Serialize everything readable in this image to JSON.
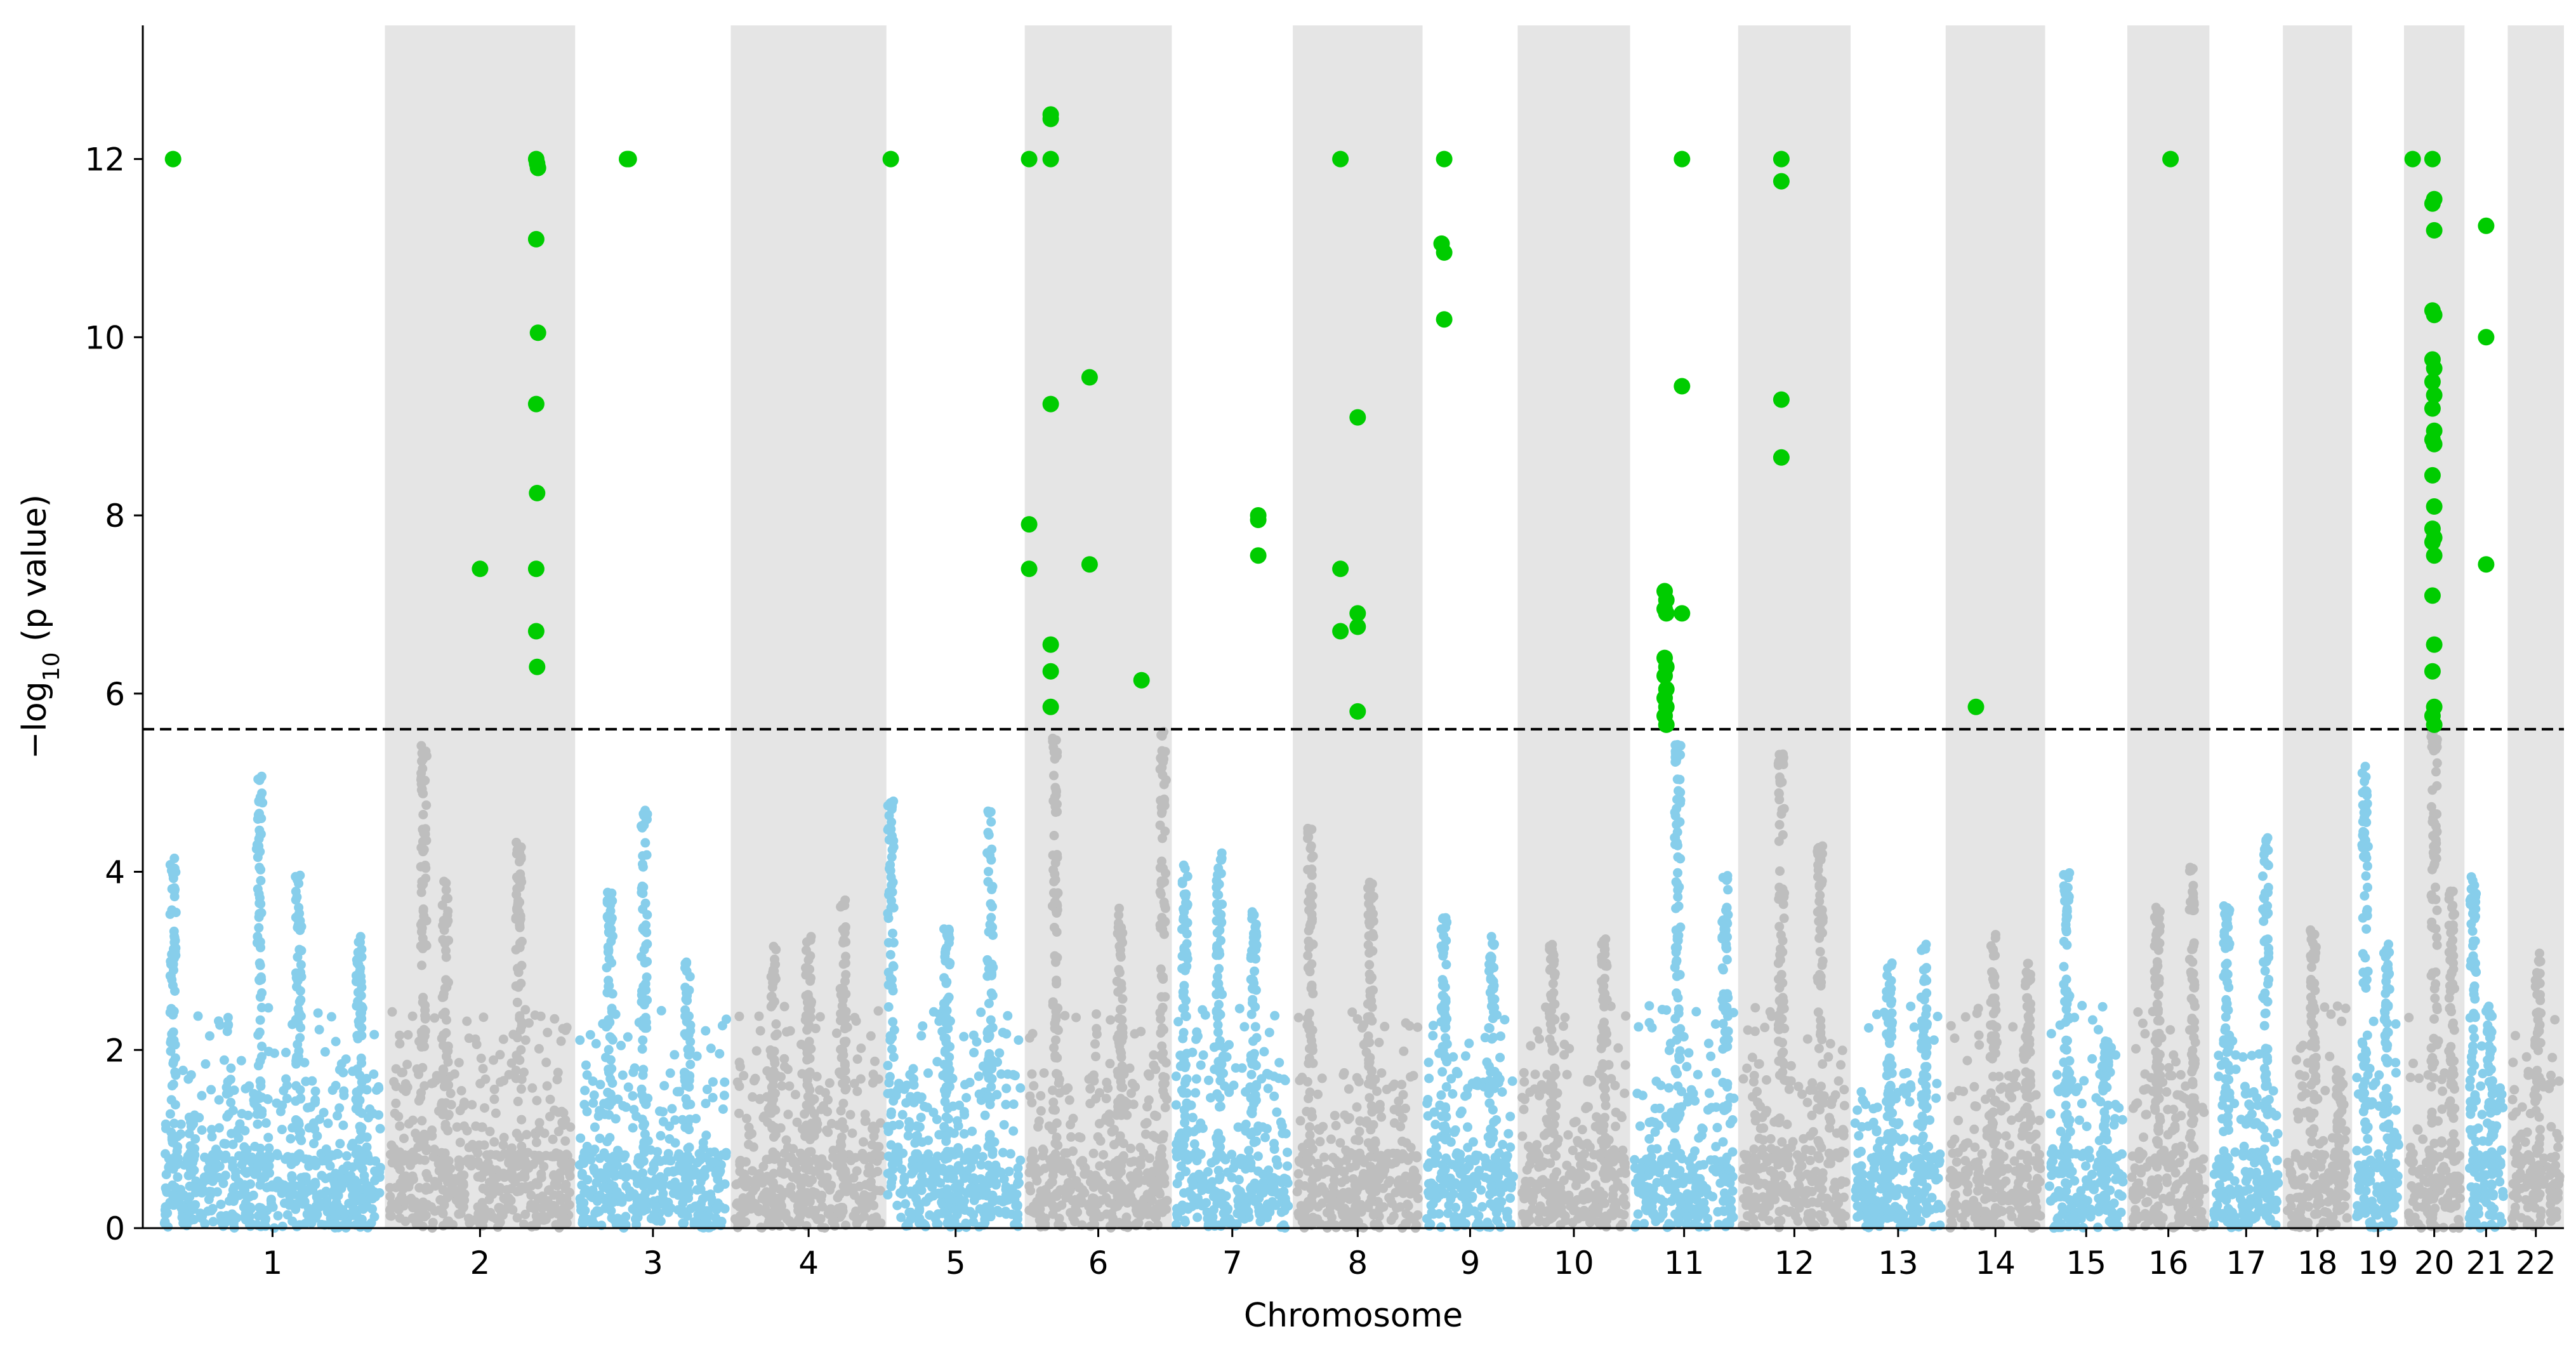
{
  "chart_data": {
    "type": "scatter",
    "title": "",
    "xlabel": "Chromosome",
    "ylabel_main": "−log",
    "ylabel_sub": "10",
    "ylabel_rest": " (p value)",
    "ylim": [
      0,
      13.5
    ],
    "yticks": [
      0,
      2,
      4,
      6,
      8,
      10,
      12
    ],
    "threshold": 5.6,
    "colors": {
      "odd": "#87ceeb",
      "even": "#bebebe",
      "significant": "#00cc00",
      "shade": "#e5e5e5",
      "threshold_line": "#000000"
    },
    "chromosomes": [
      {
        "label": "1",
        "start": 0.2,
        "end": 2.8,
        "shaded": false,
        "peaks": [
          [
            0.35,
            4.2
          ],
          [
            1.35,
            5.1
          ],
          [
            1.8,
            4.0
          ],
          [
            2.5,
            3.3
          ]
        ]
      },
      {
        "label": "2",
        "start": 2.8,
        "end": 5.0,
        "shaded": true,
        "peaks": [
          [
            3.25,
            5.5
          ],
          [
            3.5,
            3.9
          ],
          [
            4.35,
            4.4
          ]
        ]
      },
      {
        "label": "3",
        "start": 5.0,
        "end": 6.8,
        "shaded": false,
        "peaks": [
          [
            5.4,
            3.8
          ],
          [
            5.8,
            4.7
          ],
          [
            6.3,
            3.0
          ]
        ]
      },
      {
        "label": "4",
        "start": 6.8,
        "end": 8.6,
        "shaded": true,
        "peaks": [
          [
            7.3,
            3.2
          ],
          [
            7.7,
            3.3
          ],
          [
            8.1,
            3.7
          ]
        ]
      },
      {
        "label": "5",
        "start": 8.6,
        "end": 10.2,
        "shaded": false,
        "peaks": [
          [
            8.65,
            4.8
          ],
          [
            9.3,
            3.4
          ],
          [
            9.8,
            4.7
          ]
        ]
      },
      {
        "label": "6",
        "start": 10.2,
        "end": 11.9,
        "shaded": true,
        "peaks": [
          [
            10.55,
            5.5
          ],
          [
            11.3,
            3.6
          ],
          [
            11.8,
            5.6
          ]
        ]
      },
      {
        "label": "7",
        "start": 11.9,
        "end": 13.3,
        "shaded": false,
        "peaks": [
          [
            12.05,
            4.1
          ],
          [
            12.45,
            4.3
          ],
          [
            12.85,
            3.6
          ]
        ]
      },
      {
        "label": "8",
        "start": 13.3,
        "end": 14.8,
        "shaded": true,
        "peaks": [
          [
            13.5,
            4.5
          ],
          [
            14.2,
            3.9
          ]
        ]
      },
      {
        "label": "9",
        "start": 14.8,
        "end": 15.9,
        "shaded": false,
        "peaks": [
          [
            15.05,
            3.5
          ],
          [
            15.6,
            3.3
          ]
        ]
      },
      {
        "label": "10",
        "start": 15.9,
        "end": 17.2,
        "shaded": true,
        "peaks": [
          [
            16.3,
            3.2
          ],
          [
            16.9,
            3.3
          ]
        ]
      },
      {
        "label": "11",
        "start": 17.2,
        "end": 18.45,
        "shaded": false,
        "peaks": [
          [
            17.75,
            5.5
          ],
          [
            18.3,
            4.0
          ]
        ]
      },
      {
        "label": "12",
        "start": 18.45,
        "end": 19.75,
        "shaded": true,
        "peaks": [
          [
            18.95,
            5.4
          ],
          [
            19.4,
            4.3
          ]
        ]
      },
      {
        "label": "13",
        "start": 19.75,
        "end": 20.85,
        "shaded": false,
        "peaks": [
          [
            20.2,
            3.0
          ],
          [
            20.6,
            3.2
          ]
        ]
      },
      {
        "label": "14",
        "start": 20.85,
        "end": 22.0,
        "shaded": true,
        "peaks": [
          [
            21.4,
            3.3
          ],
          [
            21.8,
            3.0
          ]
        ]
      },
      {
        "label": "15",
        "start": 22.0,
        "end": 22.95,
        "shaded": false,
        "peaks": [
          [
            22.25,
            4.0
          ],
          [
            22.7,
            2.1
          ]
        ]
      },
      {
        "label": "16",
        "start": 22.95,
        "end": 23.9,
        "shaded": true,
        "peaks": [
          [
            23.3,
            3.6
          ],
          [
            23.7,
            4.2
          ]
        ]
      },
      {
        "label": "17",
        "start": 23.9,
        "end": 24.75,
        "shaded": false,
        "peaks": [
          [
            24.1,
            3.7
          ],
          [
            24.55,
            4.4
          ]
        ]
      },
      {
        "label": "18",
        "start": 24.75,
        "end": 25.55,
        "shaded": true,
        "peaks": [
          [
            25.1,
            3.4
          ],
          [
            25.4,
            1.8
          ]
        ]
      },
      {
        "label": "19",
        "start": 25.55,
        "end": 26.15,
        "shaded": false,
        "peaks": [
          [
            25.7,
            5.2
          ],
          [
            25.95,
            3.2
          ]
        ]
      },
      {
        "label": "20",
        "start": 26.15,
        "end": 26.85,
        "shaded": true,
        "peaks": [
          [
            26.5,
            5.6
          ],
          [
            26.7,
            3.8
          ]
        ]
      },
      {
        "label": "21",
        "start": 26.85,
        "end": 27.35,
        "shaded": false,
        "peaks": [
          [
            26.95,
            4.0
          ],
          [
            27.15,
            2.5
          ]
        ]
      },
      {
        "label": "22",
        "start": 27.35,
        "end": 28.0,
        "shaded": true,
        "peaks": [
          [
            27.7,
            3.1
          ]
        ]
      }
    ],
    "xlim": [
      0,
      28.0
    ],
    "significant_points": [
      [
        0.35,
        12.0
      ],
      [
        3.9,
        7.4
      ],
      [
        4.55,
        12.0
      ],
      [
        4.56,
        11.95
      ],
      [
        4.57,
        11.9
      ],
      [
        4.55,
        11.1
      ],
      [
        4.57,
        10.05
      ],
      [
        4.55,
        9.25
      ],
      [
        4.56,
        8.25
      ],
      [
        4.55,
        7.4
      ],
      [
        4.55,
        6.7
      ],
      [
        4.56,
        6.3
      ],
      [
        5.6,
        12.0
      ],
      [
        5.62,
        12.0
      ],
      [
        8.65,
        12.0
      ],
      [
        10.25,
        12.0
      ],
      [
        10.5,
        12.5
      ],
      [
        10.5,
        12.45
      ],
      [
        10.5,
        12.0
      ],
      [
        10.5,
        9.25
      ],
      [
        10.25,
        7.9
      ],
      [
        10.25,
        7.4
      ],
      [
        10.5,
        6.55
      ],
      [
        10.5,
        6.25
      ],
      [
        10.5,
        5.85
      ],
      [
        10.95,
        9.55
      ],
      [
        10.95,
        7.45
      ],
      [
        11.55,
        6.15
      ],
      [
        12.9,
        8.0
      ],
      [
        12.9,
        7.95
      ],
      [
        12.9,
        7.55
      ],
      [
        13.85,
        12.0
      ],
      [
        13.85,
        7.4
      ],
      [
        13.85,
        6.7
      ],
      [
        14.05,
        9.1
      ],
      [
        14.05,
        6.9
      ],
      [
        14.05,
        6.75
      ],
      [
        14.05,
        5.8
      ],
      [
        15.05,
        12.0
      ],
      [
        15.02,
        11.05
      ],
      [
        15.05,
        10.95
      ],
      [
        15.05,
        10.2
      ],
      [
        17.6,
        7.15
      ],
      [
        17.62,
        7.05
      ],
      [
        17.6,
        6.95
      ],
      [
        17.62,
        6.9
      ],
      [
        17.6,
        6.4
      ],
      [
        17.62,
        6.3
      ],
      [
        17.6,
        6.2
      ],
      [
        17.62,
        6.05
      ],
      [
        17.6,
        5.95
      ],
      [
        17.62,
        5.85
      ],
      [
        17.6,
        5.75
      ],
      [
        17.62,
        5.65
      ],
      [
        17.8,
        12.0
      ],
      [
        17.8,
        9.45
      ],
      [
        17.8,
        6.9
      ],
      [
        18.95,
        12.0
      ],
      [
        18.95,
        11.75
      ],
      [
        18.95,
        9.3
      ],
      [
        18.95,
        8.65
      ],
      [
        21.2,
        5.85
      ],
      [
        23.45,
        12.0
      ],
      [
        26.25,
        12.0
      ],
      [
        26.48,
        12.0
      ],
      [
        26.5,
        11.55
      ],
      [
        26.48,
        11.5
      ],
      [
        26.5,
        11.2
      ],
      [
        26.48,
        10.3
      ],
      [
        26.5,
        10.25
      ],
      [
        26.48,
        9.75
      ],
      [
        26.5,
        9.65
      ],
      [
        26.48,
        9.5
      ],
      [
        26.5,
        9.35
      ],
      [
        26.48,
        9.2
      ],
      [
        26.5,
        8.95
      ],
      [
        26.48,
        8.85
      ],
      [
        26.5,
        8.8
      ],
      [
        26.48,
        8.45
      ],
      [
        26.5,
        8.1
      ],
      [
        26.48,
        7.85
      ],
      [
        26.5,
        7.75
      ],
      [
        26.48,
        7.7
      ],
      [
        26.5,
        7.55
      ],
      [
        26.48,
        7.1
      ],
      [
        26.5,
        6.55
      ],
      [
        26.48,
        6.25
      ],
      [
        26.5,
        5.85
      ],
      [
        26.48,
        5.75
      ],
      [
        26.5,
        5.65
      ],
      [
        27.1,
        11.25
      ],
      [
        27.1,
        10.0
      ],
      [
        27.1,
        7.45
      ]
    ]
  }
}
